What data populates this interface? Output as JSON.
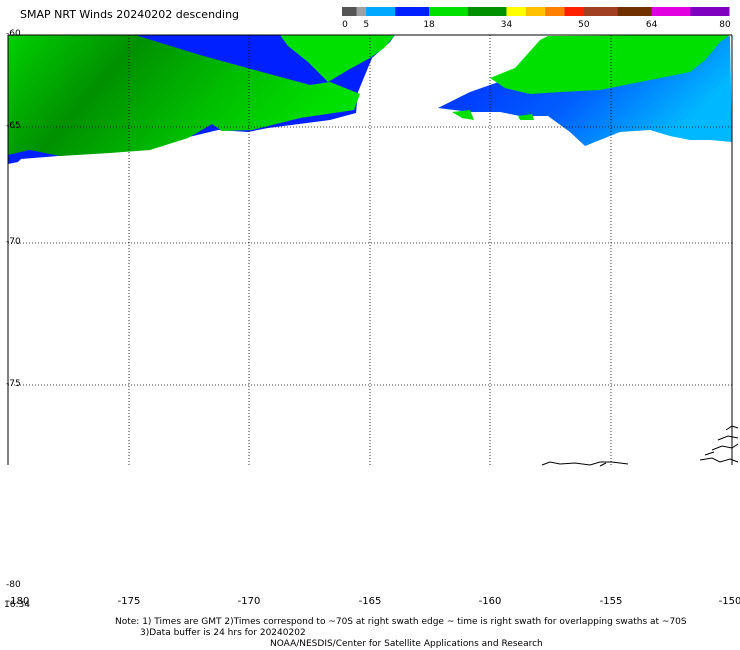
{
  "header": {
    "title": "SMAP NRT Winds  20240202 descending"
  },
  "color_scale": {
    "ticks": [
      "0",
      "5",
      "18",
      "34",
      "50",
      "64",
      "80"
    ],
    "segments": [
      {
        "from": 0,
        "to": 3,
        "color": "#555555"
      },
      {
        "from": 3,
        "to": 5,
        "color": "#a0a0a0"
      },
      {
        "from": 5,
        "to": 11,
        "color": "#00a8ff"
      },
      {
        "from": 11,
        "to": 18,
        "color": "#0020ff"
      },
      {
        "from": 18,
        "to": 26,
        "color": "#00e000"
      },
      {
        "from": 26,
        "to": 34,
        "color": "#009000"
      },
      {
        "from": 34,
        "to": 38,
        "color": "#ffff00"
      },
      {
        "from": 38,
        "to": 42,
        "color": "#ffc000"
      },
      {
        "from": 42,
        "to": 46,
        "color": "#ff8000"
      },
      {
        "from": 46,
        "to": 50,
        "color": "#ff2000"
      },
      {
        "from": 50,
        "to": 57,
        "color": "#a04020"
      },
      {
        "from": 57,
        "to": 64,
        "color": "#703000"
      },
      {
        "from": 64,
        "to": 72,
        "color": "#e000e0"
      },
      {
        "from": 72,
        "to": 80,
        "color": "#8000c0"
      }
    ]
  },
  "map": {
    "lat_labels": [
      "-60",
      "-65",
      "-70",
      "-75",
      "-80"
    ],
    "lon_labels": [
      "-180",
      "-175",
      "-170",
      "-165",
      "-160",
      "-155",
      "-150"
    ],
    "time_label": "16:34",
    "colors": {
      "wind_dark_green": "#009000",
      "wind_green": "#00e000",
      "wind_blue": "#0020ff",
      "wind_light_blue": "#00a8ff",
      "grid": "#000000",
      "coast": "#000000"
    }
  },
  "footer": {
    "note_line1": "Note: 1) Times are GMT 2)Times correspond to ~70S at right swath edge ~ time is right swath for overlapping swaths at ~70S",
    "note_line2": "3)Data buffer is 24 hrs for 20240202",
    "credit": "NOAA/NESDIS/Center for Satellite Applications and Research"
  }
}
